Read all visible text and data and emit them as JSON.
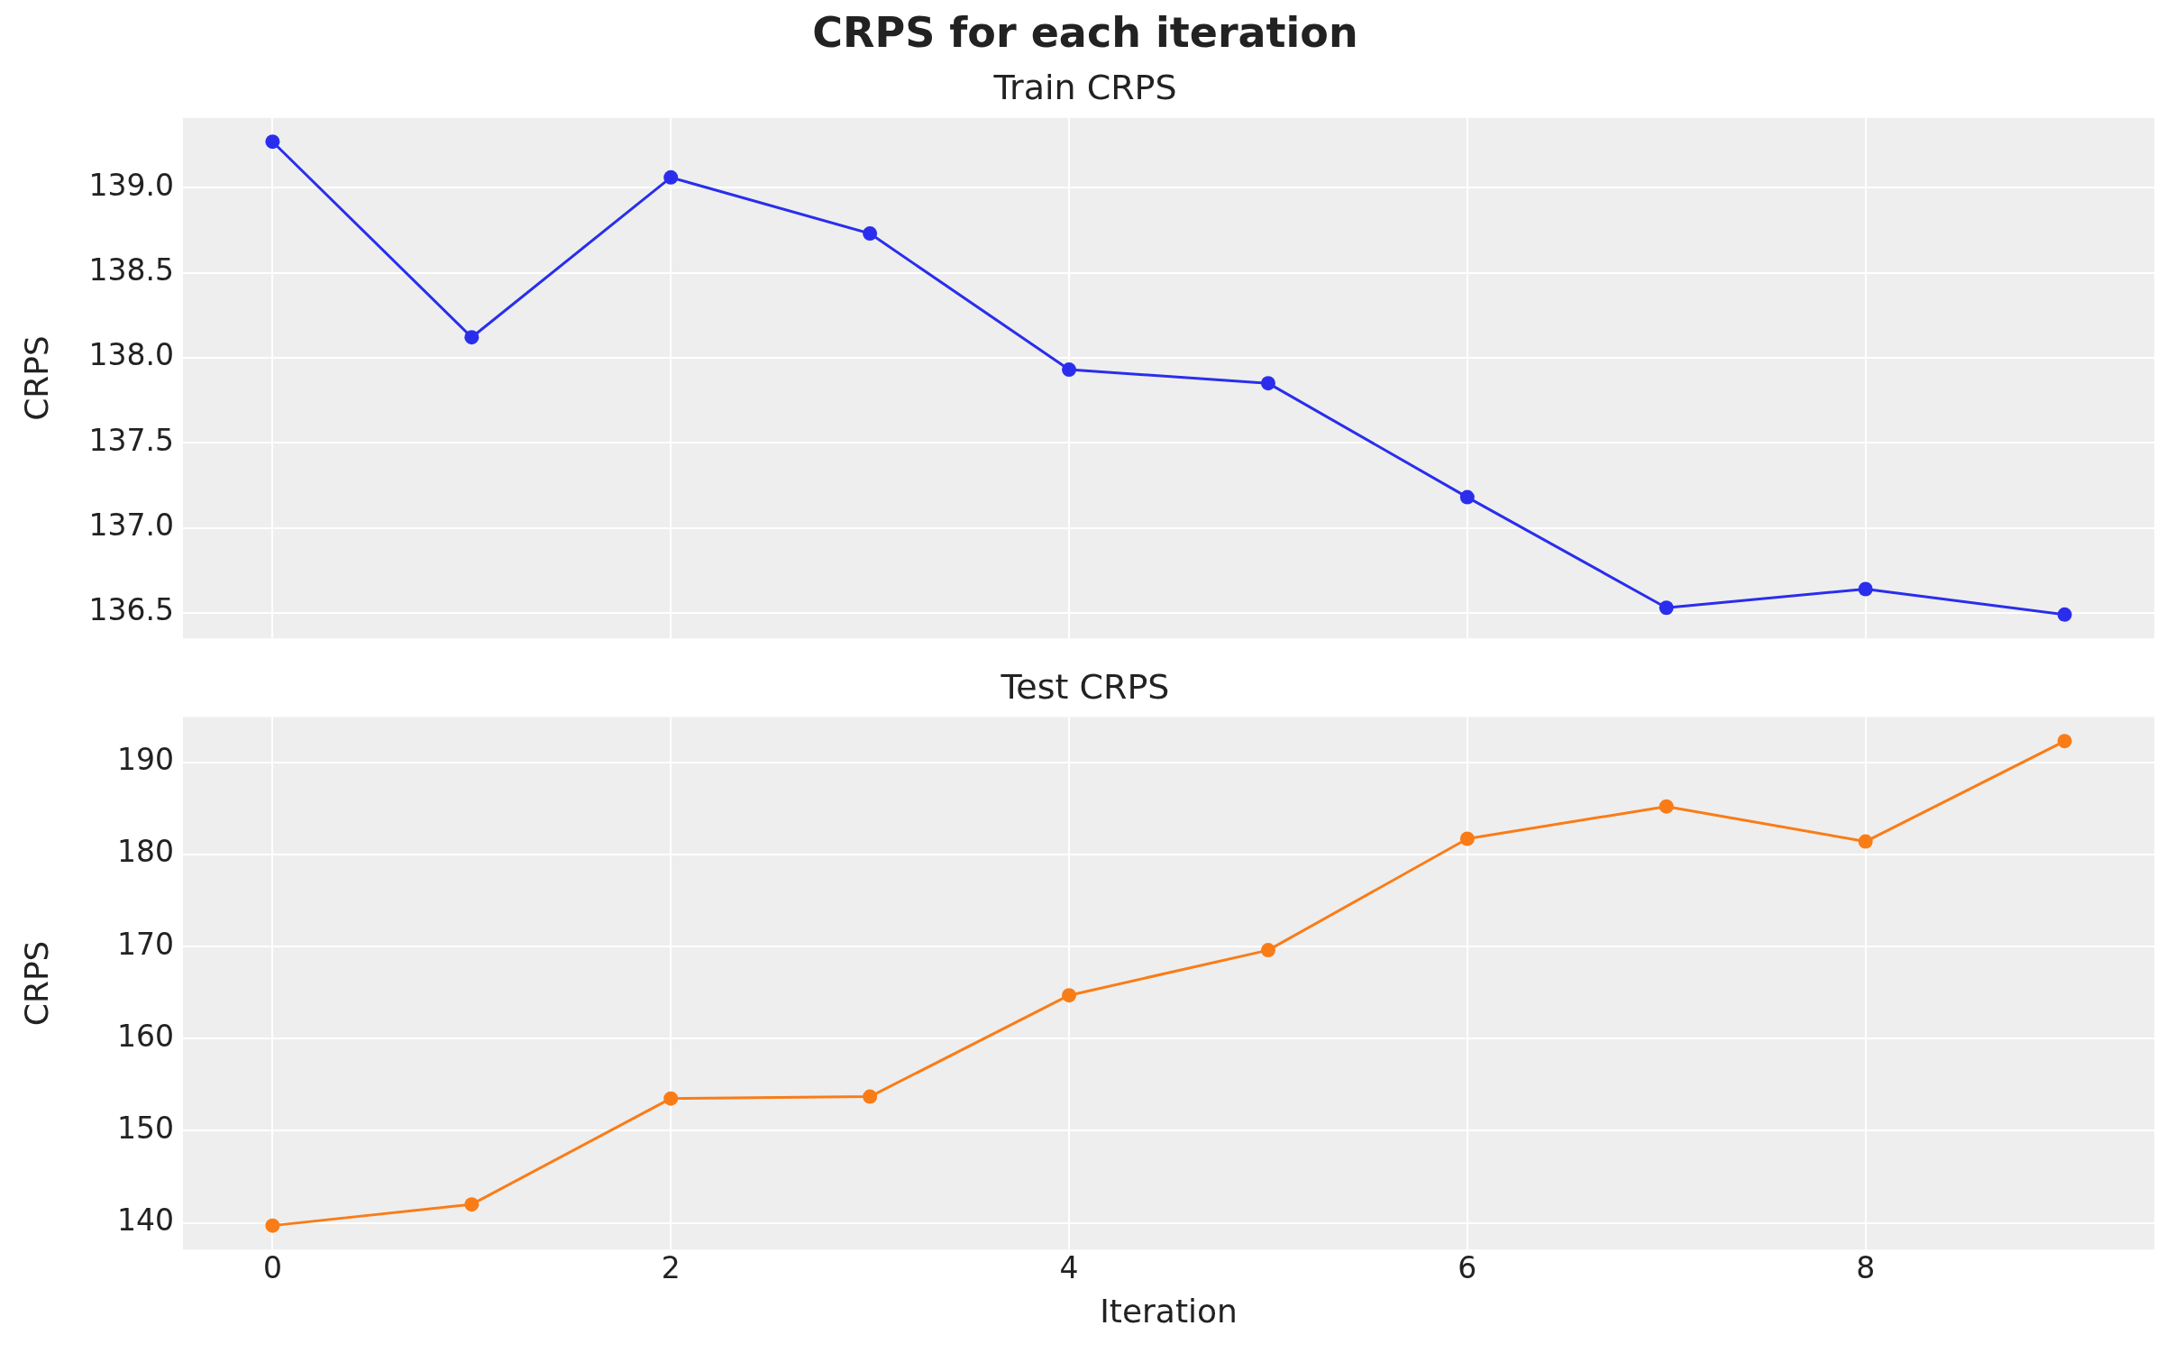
{
  "chart_data": [
    {
      "type": "line",
      "title": "CRPS for each iteration",
      "subtitle": "Train CRPS",
      "ylabel": "CRPS",
      "x": [
        0,
        1,
        2,
        3,
        4,
        5,
        6,
        7,
        8,
        9
      ],
      "series": [
        {
          "color": "#2a2eec",
          "values": [
            139.27,
            138.12,
            139.06,
            138.73,
            137.93,
            137.85,
            137.18,
            136.53,
            136.64,
            136.49
          ]
        }
      ],
      "xlim": [
        -0.45,
        9.45
      ],
      "xticks": [
        0,
        2,
        4,
        6,
        8
      ],
      "ylim": [
        136.35,
        139.41
      ],
      "yticks": [
        136.5,
        {
          "value": 137,
          "label": "137.0"
        },
        137.5,
        {
          "value": 138,
          "label": "138.0"
        },
        138.5,
        {
          "value": 139,
          "label": "139.0"
        }
      ],
      "tick_labels": "y",
      "grid": true,
      "marker": "circle",
      "legend": false
    },
    {
      "type": "line",
      "title": "Test CRPS",
      "xlabel": "Iteration",
      "ylabel": "CRPS",
      "x": [
        0,
        1,
        2,
        3,
        4,
        5,
        6,
        7,
        8,
        9
      ],
      "series": [
        {
          "color": "#fa7c17",
          "values": [
            139.7,
            142.0,
            153.5,
            153.7,
            164.7,
            169.6,
            181.7,
            185.2,
            181.4,
            192.3
          ]
        }
      ],
      "xlim": [
        -0.45,
        9.45
      ],
      "xticks": [
        0,
        2,
        4,
        6,
        8
      ],
      "ylim": [
        137.1,
        194.9
      ],
      "yticks": [
        140,
        150,
        160,
        170,
        180,
        190
      ],
      "grid": true,
      "marker": "circle",
      "legend": false
    }
  ]
}
